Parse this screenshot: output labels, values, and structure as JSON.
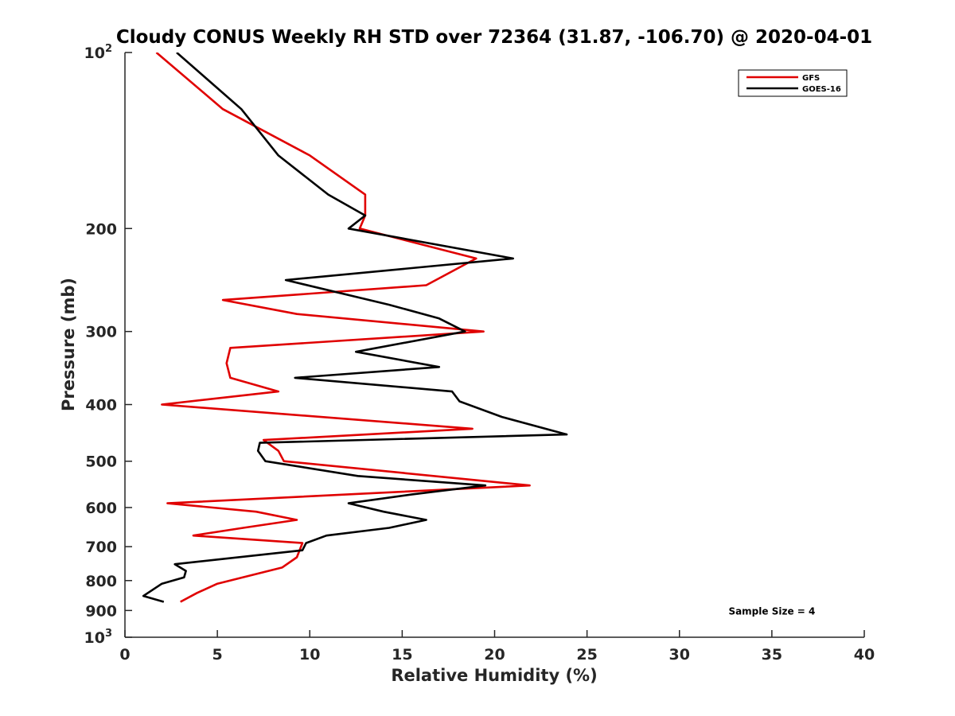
{
  "chart_data": {
    "type": "line",
    "title": "Cloudy CONUS Weekly RH STD over 72364 (31.87, -106.70) @ 2020-04-01",
    "xlabel": "Relative Humidity (%)",
    "ylabel": "Pressure (mb)",
    "xlim": [
      0,
      40
    ],
    "ylim": [
      100,
      1000
    ],
    "y_scale": "log",
    "y_reversed": true,
    "grid": false,
    "legend_position": "top-right",
    "x_ticks": [
      {
        "value": 0,
        "label": "0"
      },
      {
        "value": 5,
        "label": "5"
      },
      {
        "value": 10,
        "label": "10"
      },
      {
        "value": 15,
        "label": "15"
      },
      {
        "value": 20,
        "label": "20"
      },
      {
        "value": 25,
        "label": "25"
      },
      {
        "value": 30,
        "label": "30"
      },
      {
        "value": 35,
        "label": "35"
      },
      {
        "value": 40,
        "label": "40"
      }
    ],
    "y_ticks": [
      {
        "value": 100,
        "label": "10",
        "sup": "2"
      },
      {
        "value": 200,
        "label": "200",
        "sup": ""
      },
      {
        "value": 300,
        "label": "300",
        "sup": ""
      },
      {
        "value": 400,
        "label": "400",
        "sup": ""
      },
      {
        "value": 500,
        "label": "500",
        "sup": ""
      },
      {
        "value": 600,
        "label": "600",
        "sup": ""
      },
      {
        "value": 700,
        "label": "700",
        "sup": ""
      },
      {
        "value": 800,
        "label": "800",
        "sup": ""
      },
      {
        "value": 900,
        "label": "900",
        "sup": ""
      },
      {
        "value": 1000,
        "label": "10",
        "sup": "3"
      }
    ],
    "annotations": [
      {
        "text": "Sample Size = 4",
        "x": 35,
        "y": 900
      }
    ],
    "series": [
      {
        "name": "GFS",
        "color": "#e00000",
        "points": [
          {
            "rh": 1.7,
            "p": 100
          },
          {
            "rh": 5.3,
            "p": 125
          },
          {
            "rh": 10.0,
            "p": 150
          },
          {
            "rh": 13.0,
            "p": 175
          },
          {
            "rh": 13.0,
            "p": 190
          },
          {
            "rh": 12.7,
            "p": 200
          },
          {
            "rh": 19.0,
            "p": 225
          },
          {
            "rh": 16.3,
            "p": 250
          },
          {
            "rh": 5.3,
            "p": 265
          },
          {
            "rh": 9.3,
            "p": 280
          },
          {
            "rh": 19.4,
            "p": 300
          },
          {
            "rh": 5.7,
            "p": 320
          },
          {
            "rh": 5.5,
            "p": 340
          },
          {
            "rh": 5.7,
            "p": 360
          },
          {
            "rh": 8.3,
            "p": 380
          },
          {
            "rh": 2.0,
            "p": 400
          },
          {
            "rh": 18.8,
            "p": 440
          },
          {
            "rh": 7.5,
            "p": 460
          },
          {
            "rh": 8.3,
            "p": 480
          },
          {
            "rh": 8.6,
            "p": 500
          },
          {
            "rh": 21.9,
            "p": 550
          },
          {
            "rh": 2.3,
            "p": 590
          },
          {
            "rh": 7.1,
            "p": 610
          },
          {
            "rh": 9.3,
            "p": 630
          },
          {
            "rh": 6.4,
            "p": 650
          },
          {
            "rh": 3.7,
            "p": 670
          },
          {
            "rh": 9.6,
            "p": 690
          },
          {
            "rh": 9.3,
            "p": 730
          },
          {
            "rh": 8.5,
            "p": 760
          },
          {
            "rh": 5.0,
            "p": 810
          },
          {
            "rh": 3.9,
            "p": 840
          },
          {
            "rh": 3.0,
            "p": 870
          }
        ]
      },
      {
        "name": "GOES-16",
        "color": "#000000",
        "points": [
          {
            "rh": 2.8,
            "p": 100
          },
          {
            "rh": 6.3,
            "p": 125
          },
          {
            "rh": 8.3,
            "p": 150
          },
          {
            "rh": 11.0,
            "p": 175
          },
          {
            "rh": 13.0,
            "p": 190
          },
          {
            "rh": 12.1,
            "p": 200
          },
          {
            "rh": 21.0,
            "p": 225
          },
          {
            "rh": 8.7,
            "p": 245
          },
          {
            "rh": 14.3,
            "p": 270
          },
          {
            "rh": 17.0,
            "p": 285
          },
          {
            "rh": 18.4,
            "p": 300
          },
          {
            "rh": 12.5,
            "p": 325
          },
          {
            "rh": 17.0,
            "p": 345
          },
          {
            "rh": 9.2,
            "p": 360
          },
          {
            "rh": 17.7,
            "p": 380
          },
          {
            "rh": 18.1,
            "p": 395
          },
          {
            "rh": 20.4,
            "p": 420
          },
          {
            "rh": 23.9,
            "p": 450
          },
          {
            "rh": 7.3,
            "p": 465
          },
          {
            "rh": 7.2,
            "p": 480
          },
          {
            "rh": 7.6,
            "p": 500
          },
          {
            "rh": 12.6,
            "p": 530
          },
          {
            "rh": 19.5,
            "p": 550
          },
          {
            "rh": 15.5,
            "p": 570
          },
          {
            "rh": 12.1,
            "p": 590
          },
          {
            "rh": 14.0,
            "p": 610
          },
          {
            "rh": 16.3,
            "p": 630
          },
          {
            "rh": 14.3,
            "p": 650
          },
          {
            "rh": 10.9,
            "p": 670
          },
          {
            "rh": 9.8,
            "p": 690
          },
          {
            "rh": 9.6,
            "p": 710
          },
          {
            "rh": 2.7,
            "p": 750
          },
          {
            "rh": 3.3,
            "p": 770
          },
          {
            "rh": 3.2,
            "p": 790
          },
          {
            "rh": 2.0,
            "p": 810
          },
          {
            "rh": 1.0,
            "p": 850
          },
          {
            "rh": 2.1,
            "p": 870
          }
        ]
      }
    ]
  }
}
